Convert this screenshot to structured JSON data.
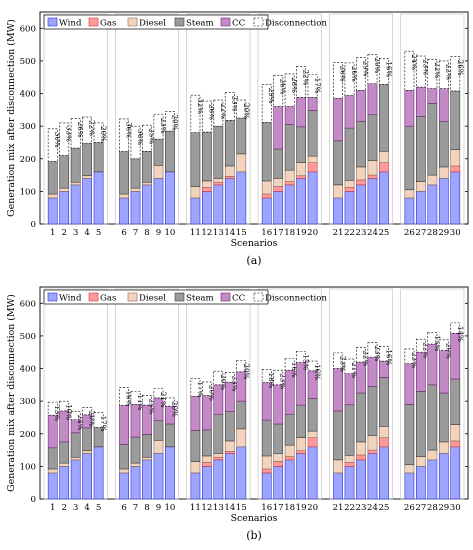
{
  "legend": {
    "wind": "Wind",
    "gas": "Gas",
    "diesel": "Diesel",
    "steam": "Steam",
    "cc": "CC",
    "disconnection": "Disconnection"
  },
  "colors": {
    "wind": "#9ea5ff",
    "gas": "#ff9a9a",
    "diesel": "#f2d3bd",
    "steam": "#9b9b9b",
    "cc": "#c48ac8",
    "disconnection": "#ffffff",
    "wind_edge": "#2f2fd6",
    "gas_edge": "#d03a3a",
    "diesel_edge": "#8a6a52",
    "steam_edge": "#3a3a3a",
    "cc_edge": "#6b2a70"
  },
  "chart_data": [
    {
      "type": "bar",
      "stacked": true,
      "label": "(a)",
      "xlabel": "Scenarios",
      "ylabel": "Generation mix after disconnection (MW)",
      "ylim": [
        0,
        650
      ],
      "yticks": [
        0,
        100,
        200,
        300,
        400,
        500,
        600
      ],
      "categories": [
        "1",
        "2",
        "3",
        "4",
        "5",
        "6",
        "7",
        "8",
        "9",
        "10",
        "11",
        "12",
        "13",
        "14",
        "15",
        "16",
        "17",
        "18",
        "19",
        "20",
        "21",
        "22",
        "23",
        "24",
        "25",
        "26",
        "27",
        "28",
        "29",
        "30"
      ],
      "groups": [
        5,
        5,
        5,
        5,
        5,
        5
      ],
      "legend_position": "top-left",
      "series": [
        {
          "name": "Wind",
          "values": [
            80,
            100,
            120,
            140,
            160,
            80,
            100,
            120,
            140,
            160,
            80,
            100,
            120,
            140,
            160,
            80,
            100,
            120,
            140,
            160,
            80,
            100,
            120,
            140,
            160,
            80,
            100,
            120,
            140,
            160
          ]
        },
        {
          "name": "Gas",
          "values": [
            0,
            0,
            0,
            0,
            0,
            0,
            0,
            0,
            0,
            0,
            0,
            12,
            8,
            6,
            0,
            12,
            15,
            10,
            8,
            28,
            0,
            12,
            15,
            10,
            28,
            0,
            0,
            0,
            0,
            18
          ]
        },
        {
          "name": "Diesel",
          "values": [
            12,
            10,
            8,
            8,
            0,
            12,
            10,
            8,
            40,
            0,
            35,
            20,
            12,
            32,
            55,
            40,
            25,
            35,
            40,
            20,
            40,
            22,
            40,
            45,
            35,
            25,
            30,
            30,
            35,
            50
          ]
        },
        {
          "name": "Steam",
          "values": [
            100,
            100,
            105,
            100,
            90,
            130,
            90,
            95,
            80,
            125,
            165,
            150,
            160,
            140,
            110,
            180,
            90,
            140,
            110,
            140,
            135,
            160,
            140,
            140,
            205,
            195,
            200,
            220,
            140,
            180
          ]
        },
        {
          "name": "CC",
          "values": [
            0,
            0,
            0,
            0,
            0,
            0,
            0,
            0,
            0,
            0,
            0,
            0,
            0,
            0,
            0,
            0,
            130,
            55,
            90,
            40,
            130,
            100,
            95,
            95,
            0,
            110,
            90,
            45,
            100,
            0
          ]
        },
        {
          "name": "Disconnection",
          "values": [
            100,
            100,
            90,
            80,
            60,
            100,
            100,
            80,
            75,
            60,
            115,
            95,
            80,
            85,
            55,
            115,
            95,
            100,
            95,
            70,
            110,
            100,
            100,
            90,
            80,
            120,
            95,
            90,
            85,
            105
          ]
        }
      ],
      "disconnection_labels": [
        "30%",
        "33%",
        "26%",
        "22%",
        "20%",
        "36%",
        "36%",
        "25%",
        "23%",
        "20%",
        "32%",
        "26%",
        "22%",
        "23%",
        "20%",
        "29%",
        "26%",
        "28%",
        "22%",
        "17%",
        "26%",
        "26%",
        "29%",
        "20%",
        "16%",
        "24%",
        "23%",
        "22%",
        "22%",
        "26%"
      ]
    },
    {
      "type": "bar",
      "stacked": true,
      "label": "(b)",
      "xlabel": "Scenarios",
      "ylabel": "Generation mix after disconnection (MW)",
      "ylim": [
        0,
        650
      ],
      "yticks": [
        0,
        100,
        200,
        300,
        400,
        500,
        600
      ],
      "categories": [
        "1",
        "2",
        "3",
        "4",
        "5",
        "6",
        "7",
        "8",
        "9",
        "10",
        "11",
        "12",
        "13",
        "14",
        "15",
        "16",
        "17",
        "18",
        "19",
        "20",
        "21",
        "22",
        "23",
        "24",
        "25",
        "26",
        "27",
        "28",
        "29",
        "30"
      ],
      "groups": [
        5,
        5,
        5,
        5,
        5,
        5
      ],
      "legend_position": "top-left",
      "series": [
        {
          "name": "Wind",
          "values": [
            80,
            100,
            120,
            140,
            160,
            80,
            100,
            120,
            140,
            160,
            80,
            100,
            120,
            140,
            160,
            80,
            100,
            120,
            140,
            160,
            80,
            100,
            120,
            140,
            160,
            80,
            100,
            120,
            140,
            160
          ]
        },
        {
          "name": "Gas",
          "values": [
            0,
            0,
            0,
            0,
            0,
            0,
            0,
            0,
            0,
            0,
            0,
            12,
            8,
            6,
            0,
            12,
            15,
            10,
            8,
            28,
            0,
            12,
            15,
            10,
            28,
            0,
            0,
            0,
            0,
            18
          ]
        },
        {
          "name": "Diesel",
          "values": [
            12,
            10,
            8,
            8,
            0,
            12,
            10,
            8,
            40,
            0,
            35,
            20,
            12,
            32,
            55,
            40,
            25,
            35,
            40,
            20,
            40,
            22,
            40,
            45,
            35,
            25,
            30,
            30,
            35,
            50
          ]
        },
        {
          "name": "Steam",
          "values": [
            65,
            65,
            75,
            70,
            60,
            75,
            80,
            70,
            60,
            70,
            95,
            80,
            120,
            90,
            85,
            110,
            90,
            95,
            100,
            100,
            150,
            155,
            150,
            150,
            150,
            185,
            200,
            200,
            150,
            140
          ]
        },
        {
          "name": "CC",
          "values": [
            100,
            95,
            40,
            40,
            0,
            120,
            100,
            90,
            70,
            55,
            105,
            105,
            90,
            90,
            90,
            115,
            120,
            135,
            130,
            85,
            130,
            95,
            95,
            90,
            50,
            125,
            120,
            125,
            130,
            140
          ]
        },
        {
          "name": "Disconnection",
          "values": [
            40,
            30,
            25,
            22,
            45,
            55,
            40,
            30,
            28,
            25,
            55,
            42,
            42,
            30,
            35,
            40,
            45,
            35,
            35,
            30,
            48,
            45,
            45,
            45,
            45,
            45,
            40,
            36,
            33,
            32
          ]
        }
      ],
      "disconnection_labels": [
        "13%",
        "10%",
        "24%",
        "20%",
        "17%",
        "16%",
        "11%",
        "25%",
        "21%",
        "20%",
        "17%",
        "20%",
        "20%",
        "23%",
        "20%",
        "18%",
        "23%",
        "16%",
        "15%",
        "16%",
        "23%",
        "21%",
        "22%",
        "23%",
        "16%",
        "23%",
        "22%",
        "15%",
        "20%",
        "14%"
      ]
    }
  ]
}
